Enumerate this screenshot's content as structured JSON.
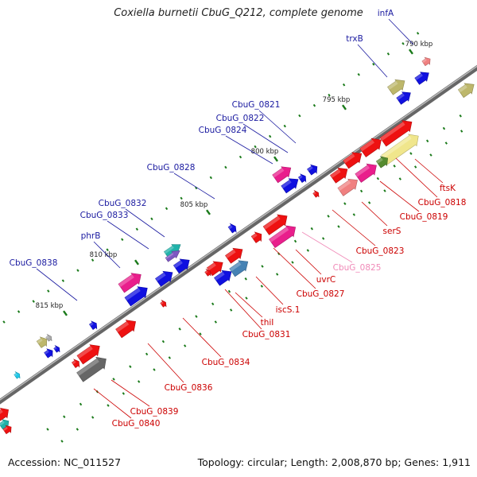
{
  "title": "Coxiella burnetii CbuG_Q212, complete genome",
  "footer": {
    "accession": "Accession: NC_011527",
    "stats": "Topology: circular; Length: 2,008,870 bp; Genes: 1,911"
  },
  "colors": {
    "backbone": "#777777",
    "tick": "#1a7a1a",
    "label_above": "#1a1aa0",
    "label_below": "#cc0000",
    "label_pink": "#f08ab8"
  },
  "ticks": [
    {
      "label": "790 kbp"
    },
    {
      "label": "795 kbp"
    },
    {
      "label": "800 kbp"
    },
    {
      "label": "805 kbp"
    },
    {
      "label": "810 kbp"
    },
    {
      "label": "815 kbp"
    }
  ],
  "gene_labels_above": [
    "infA",
    "trxB",
    "CbuG_0821",
    "CbuG_0822",
    "CbuG_0824",
    "CbuG_0828",
    "CbuG_0832",
    "CbuG_0833",
    "phrB",
    "CbuG_0838"
  ],
  "gene_labels_below": [
    "ftsK",
    "CbuG_0818",
    "CbuG_0819",
    "serS",
    "CbuG_0823",
    "CbuG_0825",
    "uvrC",
    "CbuG_0827",
    "iscS.1",
    "thiI",
    "CbuG_0831",
    "CbuG_0834",
    "CbuG_0836",
    "CbuG_0839",
    "CbuG_0840"
  ]
}
